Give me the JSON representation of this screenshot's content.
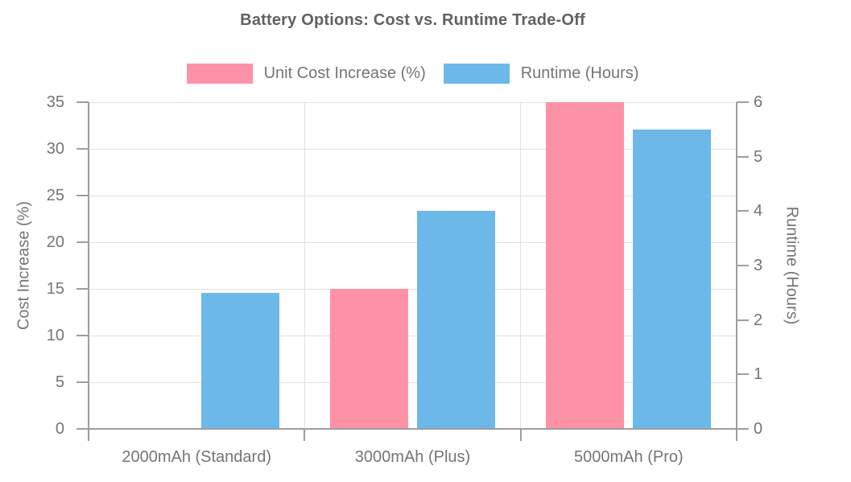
{
  "chart_data": {
    "type": "bar",
    "title": "Battery Options: Cost vs. Runtime Trade-Off",
    "categories": [
      "2000mAh (Standard)",
      "3000mAh (Plus)",
      "5000mAh (Pro)"
    ],
    "series": [
      {
        "name": "Unit Cost Increase (%)",
        "axis": "left",
        "color": "#FD92A7",
        "values": [
          0,
          15,
          35
        ]
      },
      {
        "name": "Runtime (Hours)",
        "axis": "right",
        "color": "#6CB9E9",
        "values": [
          2.5,
          4,
          5.5
        ]
      }
    ],
    "left_axis": {
      "label": "Cost Increase (%)",
      "min": 0,
      "max": 35,
      "ticks": [
        0,
        5,
        10,
        15,
        20,
        25,
        30,
        35
      ]
    },
    "right_axis": {
      "label": "Runtime (Hours)",
      "min": 0,
      "max": 6,
      "ticks": [
        0,
        1,
        2,
        3,
        4,
        5,
        6
      ]
    },
    "legend_position": "top",
    "grid": true,
    "colors": {
      "axis_line": "#9e9e9e",
      "gridline": "#e0e0e0",
      "tick_text": "#757575",
      "title_text": "#616161",
      "background": "#ffffff"
    }
  }
}
